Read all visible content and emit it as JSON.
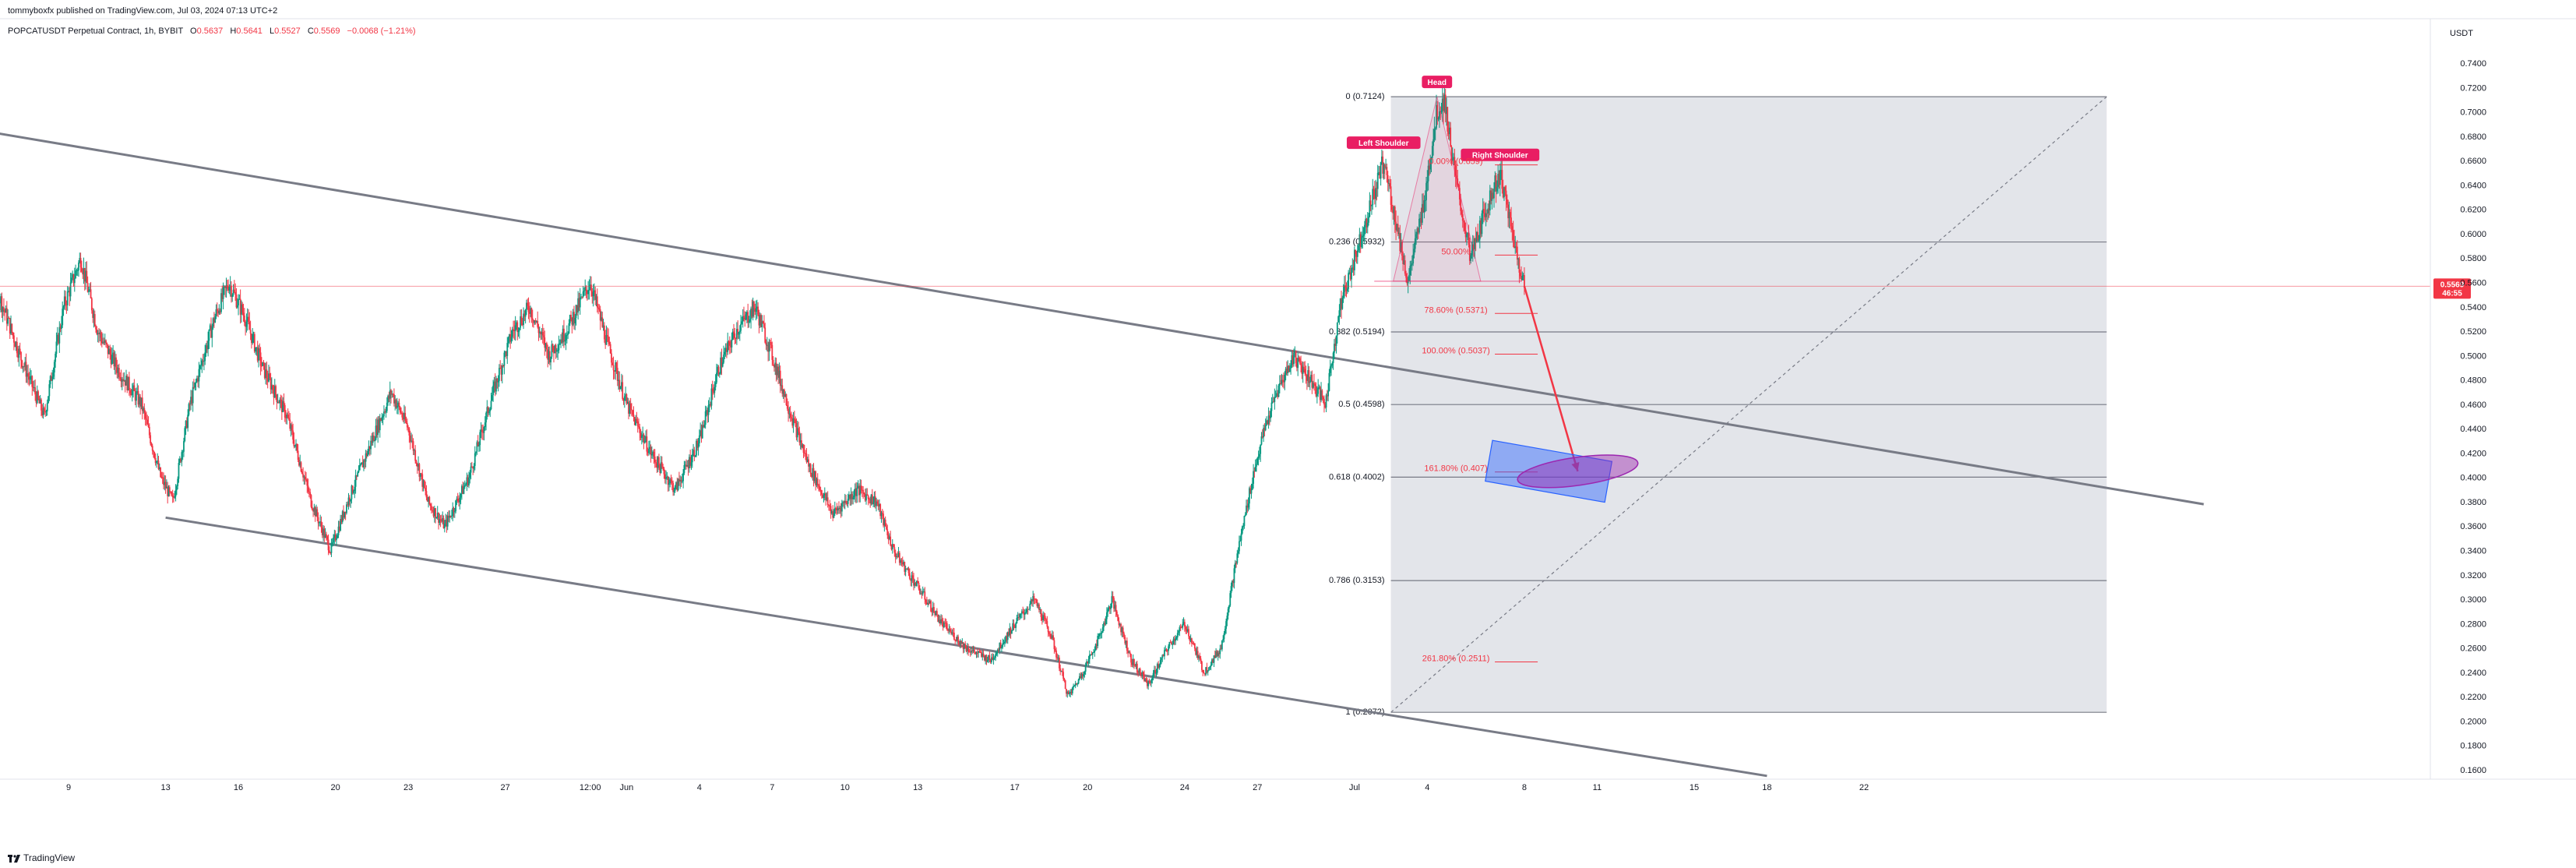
{
  "header": {
    "publisher": "tommyboxfx published on TradingView.com, Jul 03, 2024 07:13 UTC+2"
  },
  "legend": {
    "symbol": "POPCATUSDT Perpetual Contract, 1h, BYBIT",
    "o_label": "O",
    "o_value": "0.5637",
    "h_label": "H",
    "h_value": "0.5641",
    "l_label": "L",
    "l_value": "0.5527",
    "c_label": "C",
    "c_value": "0.5569",
    "change": "−0.0068 (−1.21%)"
  },
  "footer": {
    "brand": "TradingView"
  },
  "colors": {
    "up": "#089981",
    "down": "#f23645",
    "accent": "#e91e63",
    "channel": "#787b86",
    "fib_fill": "#d1d4dc",
    "target_box": "#2962ff",
    "target_ellipse": "#9c27b0"
  },
  "chart_data": {
    "type": "candlestick",
    "interval": "1h",
    "y_axis": {
      "label": "USDT",
      "range": [
        0.15,
        0.76
      ],
      "ticks": [
        "0.7400",
        "0.7200",
        "0.7000",
        "0.6800",
        "0.6600",
        "0.6400",
        "0.6200",
        "0.6000",
        "0.5800",
        "0.5600",
        "0.5400",
        "0.5200",
        "0.5000",
        "0.4800",
        "0.4600",
        "0.4400",
        "0.4200",
        "0.4000",
        "0.3800",
        "0.3600",
        "0.3400",
        "0.3200",
        "0.3000",
        "0.2800",
        "0.2600",
        "0.2400",
        "0.2200",
        "0.2000",
        "0.1800",
        "0.1600"
      ],
      "tick_values": [
        0.74,
        0.72,
        0.7,
        0.68,
        0.66,
        0.64,
        0.62,
        0.6,
        0.58,
        0.56,
        0.54,
        0.52,
        0.5,
        0.48,
        0.46,
        0.44,
        0.42,
        0.4,
        0.38,
        0.36,
        0.34,
        0.32,
        0.3,
        0.28,
        0.26,
        0.24,
        0.22,
        0.2,
        0.18,
        0.16
      ]
    },
    "x_axis": {
      "ticks": [
        "9",
        "13",
        "16",
        "20",
        "23",
        "27",
        "12:00",
        "Jun",
        "4",
        "7",
        "10",
        "13",
        "17",
        "20",
        "24",
        "27",
        "Jul",
        "4",
        "8",
        "11",
        "15",
        "18",
        "22"
      ],
      "tick_days": [
        9,
        13,
        16,
        20,
        23,
        27,
        30.5,
        32,
        35,
        38,
        41,
        44,
        48,
        51,
        55,
        58,
        62,
        65,
        69,
        72,
        76,
        79,
        83
      ]
    },
    "current_price": {
      "value": 0.5569,
      "label": "0.5569",
      "countdown": "46:55"
    },
    "price_path": [
      [
        5,
        0.66
      ],
      [
        5.6,
        0.58
      ],
      [
        7,
        0.5
      ],
      [
        8,
        0.45
      ],
      [
        8.8,
        0.54
      ],
      [
        9.5,
        0.58
      ],
      [
        10.2,
        0.52
      ],
      [
        11,
        0.49
      ],
      [
        12,
        0.46
      ],
      [
        12.8,
        0.4
      ],
      [
        13.3,
        0.38
      ],
      [
        14,
        0.46
      ],
      [
        15,
        0.53
      ],
      [
        15.6,
        0.56
      ],
      [
        16.3,
        0.53
      ],
      [
        17,
        0.49
      ],
      [
        18,
        0.45
      ],
      [
        19,
        0.38
      ],
      [
        19.8,
        0.34
      ],
      [
        20.5,
        0.38
      ],
      [
        21.5,
        0.43
      ],
      [
        22.3,
        0.47
      ],
      [
        23,
        0.44
      ],
      [
        23.8,
        0.38
      ],
      [
        24.5,
        0.36
      ],
      [
        25.5,
        0.4
      ],
      [
        26.5,
        0.47
      ],
      [
        27.3,
        0.52
      ],
      [
        28,
        0.54
      ],
      [
        28.8,
        0.5
      ],
      [
        29.5,
        0.52
      ],
      [
        30.5,
        0.56
      ],
      [
        31.2,
        0.51
      ],
      [
        32,
        0.46
      ],
      [
        33,
        0.42
      ],
      [
        34,
        0.39
      ],
      [
        35,
        0.43
      ],
      [
        35.8,
        0.49
      ],
      [
        36.5,
        0.52
      ],
      [
        37.3,
        0.54
      ],
      [
        38,
        0.5
      ],
      [
        38.8,
        0.45
      ],
      [
        39.5,
        0.41
      ],
      [
        40.5,
        0.37
      ],
      [
        41.5,
        0.39
      ],
      [
        42.3,
        0.38
      ],
      [
        43,
        0.34
      ],
      [
        44,
        0.31
      ],
      [
        45,
        0.28
      ],
      [
        46,
        0.26
      ],
      [
        47,
        0.25
      ],
      [
        48,
        0.28
      ],
      [
        48.8,
        0.3
      ],
      [
        49.5,
        0.27
      ],
      [
        50.2,
        0.22
      ],
      [
        50.8,
        0.24
      ],
      [
        51.5,
        0.27
      ],
      [
        52,
        0.3
      ],
      [
        52.8,
        0.25
      ],
      [
        53.5,
        0.23
      ],
      [
        54.3,
        0.26
      ],
      [
        55,
        0.28
      ],
      [
        55.8,
        0.24
      ],
      [
        56.5,
        0.26
      ],
      [
        57.2,
        0.34
      ],
      [
        57.8,
        0.4
      ],
      [
        58.3,
        0.44
      ],
      [
        58.8,
        0.47
      ],
      [
        59.5,
        0.5
      ],
      [
        60.2,
        0.48
      ],
      [
        60.8,
        0.46
      ],
      [
        61.4,
        0.54
      ],
      [
        62,
        0.58
      ],
      [
        62.6,
        0.62
      ],
      [
        63.2,
        0.66
      ],
      [
        63.8,
        0.6
      ],
      [
        64.2,
        0.56
      ],
      [
        64.8,
        0.62
      ],
      [
        65.4,
        0.7
      ],
      [
        65.7,
        0.71
      ],
      [
        66.2,
        0.64
      ],
      [
        66.8,
        0.58
      ],
      [
        67.4,
        0.62
      ],
      [
        68,
        0.65
      ],
      [
        68.5,
        0.6
      ],
      [
        69,
        0.5569
      ]
    ],
    "channel": {
      "upper": [
        [
          2,
          0.696
        ],
        [
          97,
          0.378
        ]
      ],
      "lower": [
        [
          13,
          0.367
        ],
        [
          79,
          0.155
        ]
      ]
    },
    "fibonacci": {
      "x_range": [
        63.5,
        93
      ],
      "levels": [
        {
          "ratio": 0,
          "price": 0.7124,
          "label": "0 (0.7124)"
        },
        {
          "ratio": 0.236,
          "price": 0.5932,
          "label": "0.236 (0.5932)"
        },
        {
          "ratio": 0.382,
          "price": 0.5194,
          "label": "0.382 (0.5194)"
        },
        {
          "ratio": 0.5,
          "price": 0.4598,
          "label": "0.5 (0.4598)"
        },
        {
          "ratio": 0.618,
          "price": 0.4002,
          "label": "0.618 (0.4002)"
        },
        {
          "ratio": 0.786,
          "price": 0.3153,
          "label": "0.786 (0.3153)"
        },
        {
          "ratio": 1,
          "price": 0.2072,
          "label": "1 (0.2072)"
        }
      ]
    },
    "extensions": [
      {
        "label": "0.00% (0.659)",
        "price": 0.659
      },
      {
        "label": "50.00%",
        "price": 0.585
      },
      {
        "label": "78.60% (0.5371)",
        "price": 0.5371
      },
      {
        "label": "100.00% (0.5037)",
        "price": 0.5037
      },
      {
        "label": "161.80% (0.407)",
        "price": 0.407
      },
      {
        "label": "261.80% (0.2511)",
        "price": 0.2511
      }
    ],
    "annotations": [
      {
        "label": "Head",
        "day": 65.4,
        "price": 0.7124
      },
      {
        "label": "Left Shoulder",
        "day": 63.2,
        "price": 0.66
      },
      {
        "label": "Right Shoulder",
        "day": 68.0,
        "price": 0.65
      }
    ],
    "projection": {
      "from": [
        69,
        0.5569
      ],
      "to": [
        71.2,
        0.405
      ]
    },
    "target_zone": {
      "day_range": [
        67.5,
        72.5
      ],
      "price_range": [
        0.388,
        0.422
      ],
      "ellipse_center": [
        71.2,
        0.405
      ]
    }
  }
}
